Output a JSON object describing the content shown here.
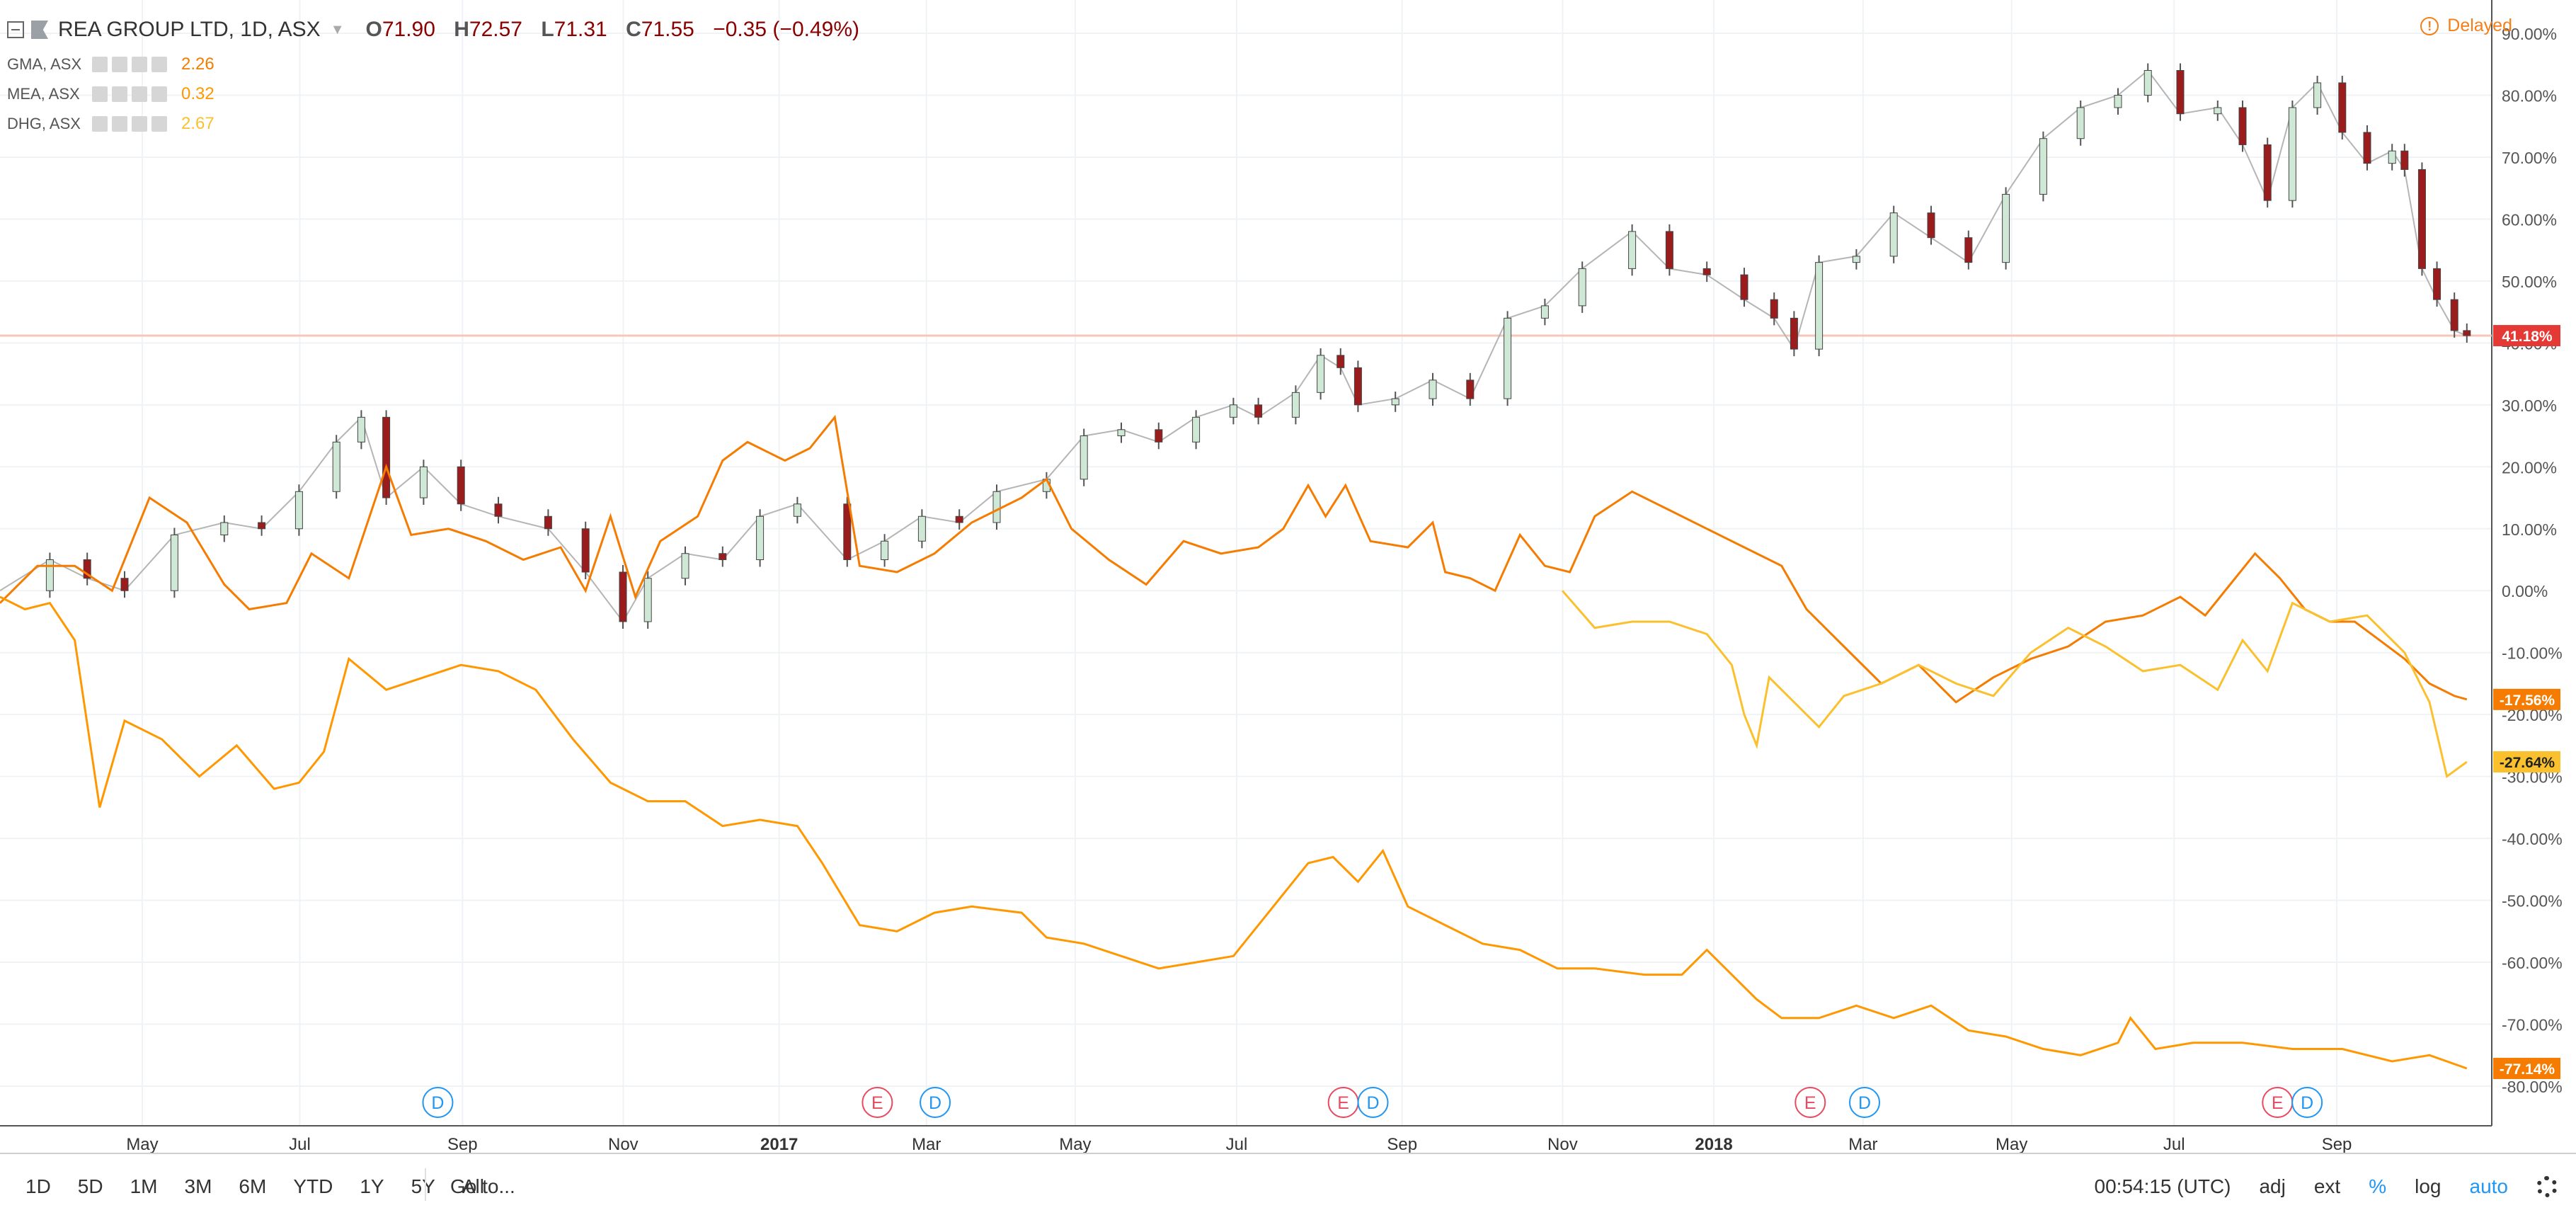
{
  "header": {
    "symbol_title": "REA GROUP LTD, 1D, ASX",
    "ohlc": {
      "o_label": "O",
      "o": "71.90",
      "h_label": "H",
      "h": "72.57",
      "l_label": "L",
      "l": "71.31",
      "c_label": "C",
      "c": "71.55",
      "change": "−0.35 (−0.49%)"
    },
    "comparisons": [
      {
        "name": "GMA, ASX",
        "value": "2.26",
        "color": "#f57c00"
      },
      {
        "name": "MEA, ASX",
        "value": "0.32",
        "color": "#ff9800"
      },
      {
        "name": "DHG, ASX",
        "value": "2.67",
        "color": "#fbc02d"
      }
    ],
    "delayed": "Delayed"
  },
  "bottom_bar": {
    "periods": [
      "1D",
      "5D",
      "1M",
      "3M",
      "6M",
      "YTD",
      "1Y",
      "5Y",
      "All"
    ],
    "goto": "Go to...",
    "time": "00:54:15 (UTC)",
    "adj": "adj",
    "ext": "ext",
    "percent": "%",
    "log": "log",
    "auto": "auto"
  },
  "chart_data": {
    "type": "line",
    "title": "REA GROUP LTD, 1D, ASX",
    "y_unit": "%",
    "ylim": [
      -83,
      92
    ],
    "y_ticks": [
      90,
      80,
      70,
      60,
      50,
      40,
      30,
      20,
      10,
      0,
      -10,
      -20,
      -30,
      -40,
      -50,
      -60,
      -70,
      -80
    ],
    "x_ticks": [
      {
        "label": "May",
        "t": 0.0571,
        "bold": false
      },
      {
        "label": "Jul",
        "t": 0.1203,
        "bold": false
      },
      {
        "label": "Sep",
        "t": 0.1856,
        "bold": false
      },
      {
        "label": "Nov",
        "t": 0.2501,
        "bold": false
      },
      {
        "label": "2017",
        "t": 0.3127,
        "bold": true
      },
      {
        "label": "Mar",
        "t": 0.3718,
        "bold": false
      },
      {
        "label": "May",
        "t": 0.4315,
        "bold": false
      },
      {
        "label": "Jul",
        "t": 0.4963,
        "bold": false
      },
      {
        "label": "Sep",
        "t": 0.5627,
        "bold": false
      },
      {
        "label": "Nov",
        "t": 0.6271,
        "bold": false
      },
      {
        "label": "2018",
        "t": 0.6878,
        "bold": true
      },
      {
        "label": "Mar",
        "t": 0.7477,
        "bold": false
      },
      {
        "label": "May",
        "t": 0.8073,
        "bold": false
      },
      {
        "label": "Jul",
        "t": 0.8725,
        "bold": false
      },
      {
        "label": "Sep",
        "t": 0.9378,
        "bold": false
      }
    ],
    "events": [
      {
        "label": "D",
        "t": 0.1757,
        "color": "#2196f3"
      },
      {
        "label": "E",
        "t": 0.3521,
        "color": "#e84a5f"
      },
      {
        "label": "D",
        "t": 0.3753,
        "color": "#2196f3"
      },
      {
        "label": "E",
        "t": 0.5391,
        "color": "#e84a5f"
      },
      {
        "label": "D",
        "t": 0.551,
        "color": "#2196f3"
      },
      {
        "label": "E",
        "t": 0.7265,
        "color": "#e84a5f"
      },
      {
        "label": "D",
        "t": 0.7483,
        "color": "#2196f3"
      },
      {
        "label": "E",
        "t": 0.914,
        "color": "#e84a5f"
      },
      {
        "label": "D",
        "t": 0.9259,
        "color": "#2196f3"
      }
    ],
    "last_value_line": 41.18,
    "series": [
      {
        "name": "REA GROUP LTD",
        "style": "candles",
        "color": "#5a5a5a",
        "last_label": "41.18%",
        "label_color": "#e53935",
        "points": [
          [
            0,
            0
          ],
          [
            0.02,
            5
          ],
          [
            0.035,
            2
          ],
          [
            0.05,
            0
          ],
          [
            0.07,
            9
          ],
          [
            0.09,
            11
          ],
          [
            0.105,
            10
          ],
          [
            0.12,
            16
          ],
          [
            0.135,
            24
          ],
          [
            0.145,
            28
          ],
          [
            0.155,
            15
          ],
          [
            0.17,
            20
          ],
          [
            0.185,
            14
          ],
          [
            0.2,
            12
          ],
          [
            0.22,
            10
          ],
          [
            0.235,
            3
          ],
          [
            0.25,
            -5
          ],
          [
            0.26,
            2
          ],
          [
            0.275,
            6
          ],
          [
            0.29,
            5
          ],
          [
            0.305,
            12
          ],
          [
            0.32,
            14
          ],
          [
            0.34,
            5
          ],
          [
            0.355,
            8
          ],
          [
            0.37,
            12
          ],
          [
            0.385,
            11
          ],
          [
            0.4,
            16
          ],
          [
            0.42,
            18
          ],
          [
            0.435,
            25
          ],
          [
            0.45,
            26
          ],
          [
            0.465,
            24
          ],
          [
            0.48,
            28
          ],
          [
            0.495,
            30
          ],
          [
            0.505,
            28
          ],
          [
            0.52,
            32
          ],
          [
            0.53,
            38
          ],
          [
            0.538,
            36
          ],
          [
            0.545,
            30
          ],
          [
            0.56,
            31
          ],
          [
            0.575,
            34
          ],
          [
            0.59,
            31
          ],
          [
            0.605,
            44
          ],
          [
            0.62,
            46
          ],
          [
            0.635,
            52
          ],
          [
            0.655,
            58
          ],
          [
            0.67,
            52
          ],
          [
            0.685,
            51
          ],
          [
            0.7,
            47
          ],
          [
            0.712,
            44
          ],
          [
            0.72,
            39
          ],
          [
            0.73,
            53
          ],
          [
            0.745,
            54
          ],
          [
            0.76,
            61
          ],
          [
            0.775,
            57
          ],
          [
            0.79,
            53
          ],
          [
            0.805,
            64
          ],
          [
            0.82,
            73
          ],
          [
            0.835,
            78
          ],
          [
            0.85,
            80
          ],
          [
            0.862,
            84
          ],
          [
            0.875,
            77
          ],
          [
            0.89,
            78
          ],
          [
            0.9,
            72
          ],
          [
            0.91,
            63
          ],
          [
            0.92,
            78
          ],
          [
            0.93,
            82
          ],
          [
            0.94,
            74
          ],
          [
            0.95,
            69
          ],
          [
            0.96,
            71
          ],
          [
            0.965,
            68
          ],
          [
            0.972,
            52
          ],
          [
            0.978,
            47
          ],
          [
            0.985,
            42
          ],
          [
            0.99,
            41.18
          ]
        ]
      },
      {
        "name": "GMA, ASX",
        "style": "line",
        "color": "#f57c00",
        "last_label": "-17.56%",
        "label_color": "#f57c00",
        "points": [
          [
            0,
            -2
          ],
          [
            0.015,
            4
          ],
          [
            0.03,
            4
          ],
          [
            0.045,
            0
          ],
          [
            0.06,
            15
          ],
          [
            0.075,
            11
          ],
          [
            0.09,
            1
          ],
          [
            0.1,
            -3
          ],
          [
            0.115,
            -2
          ],
          [
            0.125,
            6
          ],
          [
            0.14,
            2
          ],
          [
            0.155,
            20
          ],
          [
            0.165,
            9
          ],
          [
            0.18,
            10
          ],
          [
            0.195,
            8
          ],
          [
            0.21,
            5
          ],
          [
            0.225,
            7
          ],
          [
            0.235,
            0
          ],
          [
            0.245,
            12
          ],
          [
            0.255,
            -1
          ],
          [
            0.265,
            8
          ],
          [
            0.28,
            12
          ],
          [
            0.29,
            21
          ],
          [
            0.3,
            24
          ],
          [
            0.315,
            21
          ],
          [
            0.325,
            23
          ],
          [
            0.335,
            28
          ],
          [
            0.345,
            4
          ],
          [
            0.36,
            3
          ],
          [
            0.375,
            6
          ],
          [
            0.39,
            11
          ],
          [
            0.41,
            15
          ],
          [
            0.42,
            18
          ],
          [
            0.43,
            10
          ],
          [
            0.445,
            5
          ],
          [
            0.46,
            1
          ],
          [
            0.475,
            8
          ],
          [
            0.49,
            6
          ],
          [
            0.505,
            7
          ],
          [
            0.515,
            10
          ],
          [
            0.525,
            17
          ],
          [
            0.532,
            12
          ],
          [
            0.54,
            17
          ],
          [
            0.55,
            8
          ],
          [
            0.565,
            7
          ],
          [
            0.575,
            11
          ],
          [
            0.58,
            3
          ],
          [
            0.59,
            2
          ],
          [
            0.6,
            0
          ],
          [
            0.61,
            9
          ],
          [
            0.62,
            4
          ],
          [
            0.63,
            3
          ],
          [
            0.64,
            12
          ],
          [
            0.655,
            16
          ],
          [
            0.67,
            13
          ],
          [
            0.685,
            10
          ],
          [
            0.7,
            7
          ],
          [
            0.715,
            4
          ],
          [
            0.725,
            -3
          ],
          [
            0.74,
            -9
          ],
          [
            0.755,
            -15
          ],
          [
            0.77,
            -12
          ],
          [
            0.785,
            -18
          ],
          [
            0.8,
            -14
          ],
          [
            0.815,
            -11
          ],
          [
            0.83,
            -9
          ],
          [
            0.845,
            -5
          ],
          [
            0.86,
            -4
          ],
          [
            0.875,
            -1
          ],
          [
            0.885,
            -4
          ],
          [
            0.895,
            1
          ],
          [
            0.905,
            6
          ],
          [
            0.915,
            2
          ],
          [
            0.925,
            -3
          ],
          [
            0.935,
            -5
          ],
          [
            0.945,
            -5
          ],
          [
            0.955,
            -8
          ],
          [
            0.965,
            -11
          ],
          [
            0.975,
            -15
          ],
          [
            0.985,
            -17
          ],
          [
            0.99,
            -17.56
          ]
        ]
      },
      {
        "name": "MEA, ASX",
        "style": "line",
        "color": "#ff9800",
        "last_label": "-77.14%",
        "label_color": "#f57c00",
        "points": [
          [
            0,
            -1
          ],
          [
            0.01,
            -3
          ],
          [
            0.02,
            -2
          ],
          [
            0.03,
            -8
          ],
          [
            0.04,
            -35
          ],
          [
            0.05,
            -21
          ],
          [
            0.065,
            -24
          ],
          [
            0.08,
            -30
          ],
          [
            0.095,
            -25
          ],
          [
            0.11,
            -32
          ],
          [
            0.12,
            -31
          ],
          [
            0.13,
            -26
          ],
          [
            0.14,
            -11
          ],
          [
            0.155,
            -16
          ],
          [
            0.17,
            -14
          ],
          [
            0.185,
            -12
          ],
          [
            0.2,
            -13
          ],
          [
            0.215,
            -16
          ],
          [
            0.23,
            -24
          ],
          [
            0.245,
            -31
          ],
          [
            0.26,
            -34
          ],
          [
            0.275,
            -34
          ],
          [
            0.29,
            -38
          ],
          [
            0.305,
            -37
          ],
          [
            0.32,
            -38
          ],
          [
            0.33,
            -44
          ],
          [
            0.345,
            -54
          ],
          [
            0.36,
            -55
          ],
          [
            0.375,
            -52
          ],
          [
            0.39,
            -51
          ],
          [
            0.41,
            -52
          ],
          [
            0.42,
            -56
          ],
          [
            0.435,
            -57
          ],
          [
            0.45,
            -59
          ],
          [
            0.465,
            -61
          ],
          [
            0.48,
            -60
          ],
          [
            0.495,
            -59
          ],
          [
            0.505,
            -54
          ],
          [
            0.515,
            -49
          ],
          [
            0.525,
            -44
          ],
          [
            0.535,
            -43
          ],
          [
            0.545,
            -47
          ],
          [
            0.555,
            -42
          ],
          [
            0.565,
            -51
          ],
          [
            0.58,
            -54
          ],
          [
            0.595,
            -57
          ],
          [
            0.61,
            -58
          ],
          [
            0.625,
            -61
          ],
          [
            0.64,
            -61
          ],
          [
            0.66,
            -62
          ],
          [
            0.675,
            -62
          ],
          [
            0.685,
            -58
          ],
          [
            0.695,
            -62
          ],
          [
            0.705,
            -66
          ],
          [
            0.715,
            -69
          ],
          [
            0.73,
            -69
          ],
          [
            0.745,
            -67
          ],
          [
            0.76,
            -69
          ],
          [
            0.775,
            -67
          ],
          [
            0.79,
            -71
          ],
          [
            0.805,
            -72
          ],
          [
            0.82,
            -74
          ],
          [
            0.835,
            -75
          ],
          [
            0.85,
            -73
          ],
          [
            0.855,
            -69
          ],
          [
            0.865,
            -74
          ],
          [
            0.88,
            -73
          ],
          [
            0.9,
            -73
          ],
          [
            0.92,
            -74
          ],
          [
            0.94,
            -74
          ],
          [
            0.96,
            -76
          ],
          [
            0.975,
            -75
          ],
          [
            0.99,
            -77.14
          ]
        ]
      },
      {
        "name": "DHG, ASX",
        "style": "line",
        "color": "#fbc02d",
        "last_label": "-27.64%",
        "label_color": "#fbc02d",
        "points": [
          [
            0.627,
            0
          ],
          [
            0.64,
            -6
          ],
          [
            0.655,
            -5
          ],
          [
            0.67,
            -5
          ],
          [
            0.685,
            -7
          ],
          [
            0.695,
            -12
          ],
          [
            0.7,
            -20
          ],
          [
            0.705,
            -25
          ],
          [
            0.71,
            -14
          ],
          [
            0.72,
            -18
          ],
          [
            0.73,
            -22
          ],
          [
            0.74,
            -17
          ],
          [
            0.755,
            -15
          ],
          [
            0.77,
            -12
          ],
          [
            0.785,
            -15
          ],
          [
            0.8,
            -17
          ],
          [
            0.815,
            -10
          ],
          [
            0.83,
            -6
          ],
          [
            0.845,
            -9
          ],
          [
            0.86,
            -13
          ],
          [
            0.875,
            -12
          ],
          [
            0.89,
            -16
          ],
          [
            0.9,
            -8
          ],
          [
            0.91,
            -13
          ],
          [
            0.92,
            -2
          ],
          [
            0.935,
            -5
          ],
          [
            0.95,
            -4
          ],
          [
            0.965,
            -10
          ],
          [
            0.975,
            -18
          ],
          [
            0.982,
            -30
          ],
          [
            0.99,
            -27.64
          ]
        ]
      }
    ]
  }
}
